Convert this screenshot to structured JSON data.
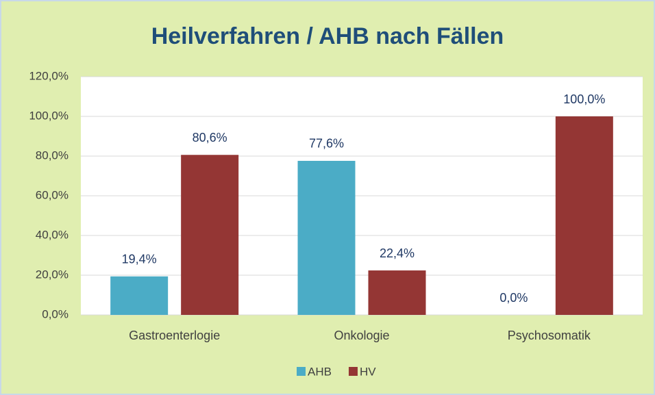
{
  "chart_data": {
    "type": "bar",
    "title": "Heilverfahren / AHB nach Fällen",
    "categories": [
      "Gastroenterlogie",
      "Onkologie",
      "Psychosomatik"
    ],
    "series": [
      {
        "name": "AHB",
        "color": "#4bacc6",
        "values": [
          19.4,
          77.6,
          0
        ],
        "value_labels": [
          "19,4%",
          "77,6%",
          "0,0%"
        ]
      },
      {
        "name": "HV",
        "color": "#943634",
        "values": [
          80.6,
          22.4,
          100
        ],
        "value_labels": [
          "80,6%",
          "22,4%",
          "100,0%"
        ]
      }
    ],
    "ylim": [
      0,
      120
    ],
    "yticks": [
      {
        "value": 0,
        "label": "0,0%"
      },
      {
        "value": 20,
        "label": "20,0%"
      },
      {
        "value": 40,
        "label": "40,0%"
      },
      {
        "value": 60,
        "label": "60,0%"
      },
      {
        "value": 80,
        "label": "80,0%"
      },
      {
        "value": 100,
        "label": "100,0%"
      },
      {
        "value": 120,
        "label": "120,0%"
      }
    ],
    "grid": true,
    "legend": "bottom"
  }
}
